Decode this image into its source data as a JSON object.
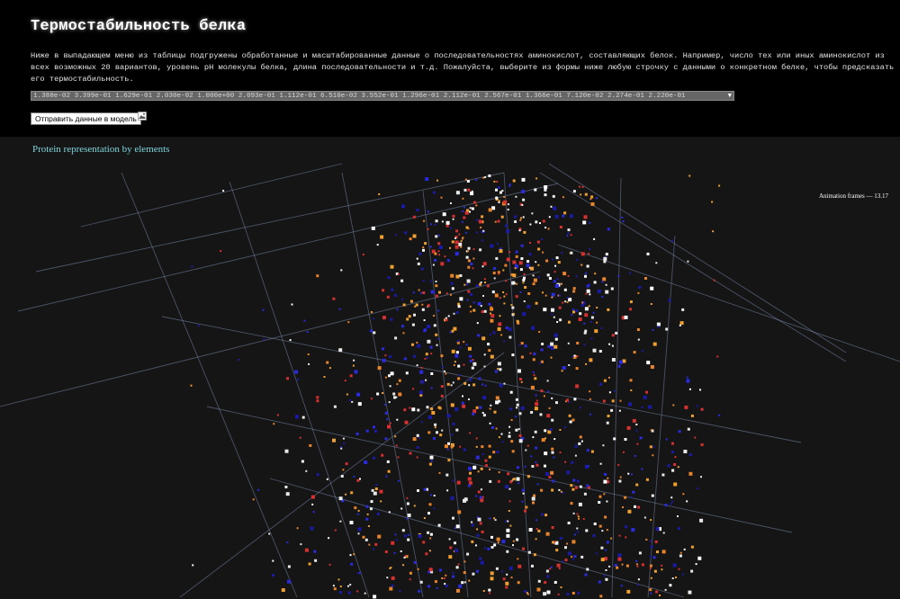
{
  "header": {
    "title": "Термостабильность белка",
    "intro": "Ниже в выпадающем меню из таблицы подгружены обработанные и масштабированные данные о последовательностях аминокислот, составляющих белок. Например, число тех или иных аминокислот из всех возможных 20 вариантов, уровень pH молекулы белка, длина последовательности и т.д. Пожалуйста, выберите из формы ниже любую строчку с данными о конкретном белке, чтобы предсказать его термостабильность.",
    "select_value": "1.388e-02 3.399e-01 1.629e-01 2.030e-02 1.000e+00 2.093e-01 1.112e-01 6.510e-02 3.552e-01 1.296e-01 2.112e-01 2.567e-01 1.366e-01 7.120e-02 2.274e-01 2.220e-01",
    "submit_label": "Отправить данные в модель",
    "icon": "image-icon"
  },
  "viewport": {
    "plot_title": "Protein representation by elements",
    "fps_text": "Animation frames — 13.17",
    "background": "#151515",
    "grid_color": "#8aa0c8",
    "point_colors": [
      "#ffffff",
      "#e8e8e8",
      "#1a1aa8",
      "#2a2ae0",
      "#d83030",
      "#e8832a",
      "#f0a030"
    ]
  }
}
